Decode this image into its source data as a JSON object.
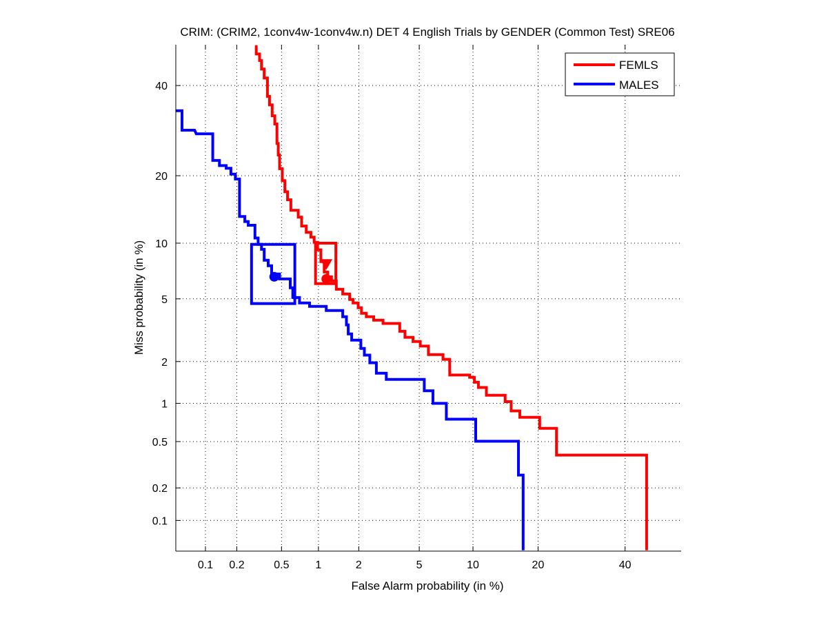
{
  "chart_data": {
    "type": "line",
    "scale": "probit (normal deviate) on both axes, DET plot",
    "title": "CRIM: (CRIM2, 1conv4w-1conv4w.n) DET 4 English Trials by GENDER (Common Test) SRE06",
    "xlabel": "False Alarm probability (in %)",
    "ylabel": "Miss probability (in %)",
    "xlim": [
      0.05,
      55
    ],
    "ylim": [
      0.05,
      50.5
    ],
    "xticks": [
      0.1,
      0.2,
      0.5,
      1,
      2,
      5,
      10,
      20,
      40
    ],
    "xtick_labels": [
      "0.1",
      "0.2",
      "0.5",
      "1",
      "2",
      "5",
      "10",
      "20",
      "40"
    ],
    "yticks": [
      0.1,
      0.2,
      0.5,
      1,
      2,
      5,
      10,
      20,
      40
    ],
    "ytick_labels": [
      "0.1",
      "0.2",
      "0.5",
      "1",
      "2",
      "5",
      "10",
      "20",
      "40"
    ],
    "grid": true,
    "legend_position": "top-right",
    "series": [
      {
        "name": "FEMLS",
        "color": "#ff0000",
        "points": [
          [
            0.301,
            50.4
          ],
          [
            0.301,
            48.1
          ],
          [
            0.322,
            48.1
          ],
          [
            0.322,
            46.4
          ],
          [
            0.335,
            46.4
          ],
          [
            0.335,
            44.2
          ],
          [
            0.354,
            44.2
          ],
          [
            0.354,
            41.9
          ],
          [
            0.378,
            41.9
          ],
          [
            0.378,
            37.3
          ],
          [
            0.394,
            37.3
          ],
          [
            0.394,
            35.2
          ],
          [
            0.416,
            35.2
          ],
          [
            0.416,
            32.6
          ],
          [
            0.438,
            32.6
          ],
          [
            0.438,
            30.7
          ],
          [
            0.457,
            30.7
          ],
          [
            0.457,
            26.4
          ],
          [
            0.469,
            26.4
          ],
          [
            0.469,
            24.0
          ],
          [
            0.481,
            24.0
          ],
          [
            0.481,
            21.3
          ],
          [
            0.507,
            21.3
          ],
          [
            0.507,
            19.1
          ],
          [
            0.534,
            19.1
          ],
          [
            0.534,
            17.2
          ],
          [
            0.562,
            17.2
          ],
          [
            0.562,
            15.9
          ],
          [
            0.599,
            15.9
          ],
          [
            0.599,
            14.3
          ],
          [
            0.689,
            14.3
          ],
          [
            0.689,
            13.3
          ],
          [
            0.734,
            13.3
          ],
          [
            0.734,
            12.1
          ],
          [
            0.8,
            12.1
          ],
          [
            0.8,
            11.3
          ],
          [
            0.872,
            11.3
          ],
          [
            0.872,
            10.7
          ],
          [
            0.926,
            10.7
          ],
          [
            0.926,
            10.1
          ],
          [
            0.985,
            10.1
          ],
          [
            0.985,
            9.25
          ],
          [
            1.045,
            9.25
          ],
          [
            1.045,
            8.05
          ],
          [
            1.11,
            8.05
          ],
          [
            1.11,
            7.08
          ],
          [
            1.18,
            7.08
          ],
          [
            1.18,
            6.67
          ],
          [
            1.26,
            6.67
          ],
          [
            1.26,
            6.33
          ],
          [
            1.37,
            6.33
          ],
          [
            1.37,
            5.68
          ],
          [
            1.53,
            5.68
          ],
          [
            1.53,
            5.34
          ],
          [
            1.72,
            5.34
          ],
          [
            1.72,
            4.96
          ],
          [
            1.82,
            4.96
          ],
          [
            1.82,
            4.73
          ],
          [
            1.98,
            4.73
          ],
          [
            1.98,
            4.43
          ],
          [
            2.09,
            4.43
          ],
          [
            2.09,
            4.1
          ],
          [
            2.26,
            4.1
          ],
          [
            2.26,
            3.91
          ],
          [
            2.54,
            3.91
          ],
          [
            2.54,
            3.72
          ],
          [
            2.94,
            3.72
          ],
          [
            2.94,
            3.55
          ],
          [
            3.78,
            3.55
          ],
          [
            3.78,
            3.17
          ],
          [
            4.08,
            3.17
          ],
          [
            4.08,
            2.9
          ],
          [
            4.58,
            2.9
          ],
          [
            4.58,
            2.72
          ],
          [
            5.07,
            2.72
          ],
          [
            5.07,
            2.54
          ],
          [
            5.67,
            2.54
          ],
          [
            5.67,
            2.23
          ],
          [
            6.89,
            2.23
          ],
          [
            6.89,
            2.07
          ],
          [
            7.51,
            2.07
          ],
          [
            7.51,
            1.61
          ],
          [
            9.61,
            1.61
          ],
          [
            9.61,
            1.55
          ],
          [
            10.17,
            1.55
          ],
          [
            10.17,
            1.43
          ],
          [
            10.66,
            1.43
          ],
          [
            10.66,
            1.31
          ],
          [
            11.68,
            1.31
          ],
          [
            11.68,
            1.15
          ],
          [
            14.36,
            1.15
          ],
          [
            14.36,
            1.03
          ],
          [
            15.3,
            1.03
          ],
          [
            15.3,
            0.875
          ],
          [
            16.73,
            0.875
          ],
          [
            16.73,
            0.782
          ],
          [
            20.31,
            0.782
          ],
          [
            20.31,
            0.64
          ],
          [
            23.67,
            0.64
          ],
          [
            23.67,
            0.386
          ],
          [
            45.7,
            0.386
          ],
          [
            45.7,
            0.127
          ],
          [
            45.7,
            0.051
          ]
        ],
        "min_dcf_point": [
          1.15,
          6.49
        ],
        "act_dcf_point": [
          1.15,
          7.78
        ],
        "confidence_box": {
          "x": [
            0.949,
            1.36
          ],
          "y": [
            6.11,
            10.0
          ]
        }
      },
      {
        "name": "MALES",
        "color": "#0000ff",
        "points": [
          [
            0.05,
            33.8
          ],
          [
            0.058,
            33.8
          ],
          [
            0.058,
            29.3
          ],
          [
            0.078,
            29.3
          ],
          [
            0.081,
            28.5
          ],
          [
            0.118,
            28.5
          ],
          [
            0.118,
            22.9
          ],
          [
            0.137,
            22.9
          ],
          [
            0.137,
            21.9
          ],
          [
            0.159,
            21.9
          ],
          [
            0.159,
            21.4
          ],
          [
            0.176,
            21.4
          ],
          [
            0.176,
            20.3
          ],
          [
            0.194,
            20.3
          ],
          [
            0.194,
            19.4
          ],
          [
            0.212,
            19.4
          ],
          [
            0.212,
            13.4
          ],
          [
            0.237,
            13.4
          ],
          [
            0.237,
            12.7
          ],
          [
            0.255,
            12.7
          ],
          [
            0.255,
            12.2
          ],
          [
            0.293,
            12.2
          ],
          [
            0.293,
            10.6
          ],
          [
            0.313,
            10.6
          ],
          [
            0.313,
            9.86
          ],
          [
            0.335,
            9.86
          ],
          [
            0.335,
            9.31
          ],
          [
            0.354,
            9.31
          ],
          [
            0.354,
            8.18
          ],
          [
            0.384,
            8.18
          ],
          [
            0.384,
            7.65
          ],
          [
            0.411,
            7.65
          ],
          [
            0.411,
            6.9
          ],
          [
            0.481,
            6.9
          ],
          [
            0.481,
            6.49
          ],
          [
            0.592,
            6.49
          ],
          [
            0.592,
            5.79
          ],
          [
            0.622,
            5.79
          ],
          [
            0.622,
            5.09
          ],
          [
            0.706,
            5.09
          ],
          [
            0.706,
            4.73
          ],
          [
            0.851,
            4.73
          ],
          [
            0.851,
            4.51
          ],
          [
            1.15,
            4.51
          ],
          [
            1.15,
            4.26
          ],
          [
            1.53,
            4.26
          ],
          [
            1.53,
            3.91
          ],
          [
            1.63,
            3.91
          ],
          [
            1.63,
            3.48
          ],
          [
            1.68,
            3.48
          ],
          [
            1.68,
            3.05
          ],
          [
            1.78,
            3.05
          ],
          [
            1.78,
            2.78
          ],
          [
            2.07,
            2.78
          ],
          [
            2.07,
            2.45
          ],
          [
            2.19,
            2.45
          ],
          [
            2.19,
            2.21
          ],
          [
            2.39,
            2.21
          ],
          [
            2.39,
            1.96
          ],
          [
            2.65,
            1.96
          ],
          [
            2.65,
            1.66
          ],
          [
            3.09,
            1.66
          ],
          [
            3.09,
            1.5
          ],
          [
            5.36,
            1.5
          ],
          [
            5.36,
            1.24
          ],
          [
            6.03,
            1.24
          ],
          [
            6.03,
            1.0
          ],
          [
            7.19,
            1.0
          ],
          [
            7.19,
            0.755
          ],
          [
            10.33,
            0.755
          ],
          [
            10.33,
            0.503
          ],
          [
            16.5,
            0.503
          ],
          [
            16.5,
            0.26
          ],
          [
            17.29,
            0.26
          ],
          [
            17.29,
            0.051
          ]
        ],
        "min_dcf_point": [
          0.433,
          6.67
        ],
        "confidence_box": {
          "x": [
            0.273,
            0.646
          ],
          "y": [
            4.69,
            9.86
          ]
        }
      }
    ]
  }
}
